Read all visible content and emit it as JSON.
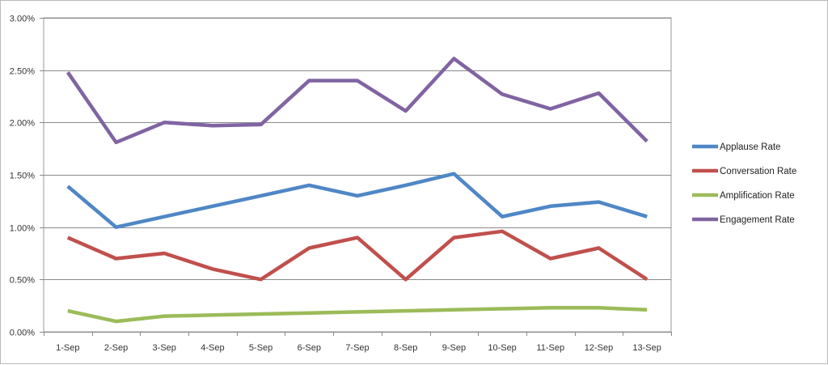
{
  "chart_data": {
    "type": "line",
    "categories": [
      "1-Sep",
      "2-Sep",
      "3-Sep",
      "4-Sep",
      "5-Sep",
      "6-Sep",
      "7-Sep",
      "8-Sep",
      "9-Sep",
      "10-Sep",
      "11-Sep",
      "12-Sep",
      "13-Sep"
    ],
    "y_tick_labels": [
      "0.00%",
      "0.50%",
      "1.00%",
      "1.50%",
      "2.00%",
      "2.50%",
      "3.00%"
    ],
    "y_ticks": [
      0,
      0.5,
      1.0,
      1.5,
      2.0,
      2.5,
      3.0
    ],
    "ylim": [
      0,
      3.0
    ],
    "y_unit": "percent",
    "grid": true,
    "legend_position": "right",
    "title": "",
    "xlabel": "",
    "ylabel": "",
    "series": [
      {
        "name": "Applause Rate",
        "color": "#4f87c6",
        "values": [
          1.39,
          1.0,
          1.1,
          1.2,
          1.3,
          1.4,
          1.3,
          1.4,
          1.51,
          1.1,
          1.2,
          1.24,
          1.1
        ]
      },
      {
        "name": "Conversation Rate",
        "color": "#c0504d",
        "values": [
          0.9,
          0.7,
          0.75,
          0.6,
          0.5,
          0.8,
          0.9,
          0.5,
          0.9,
          0.96,
          0.7,
          0.8,
          0.5
        ]
      },
      {
        "name": "Amplification Rate",
        "color": "#9bbb59",
        "values": [
          0.2,
          0.1,
          0.15,
          0.16,
          0.17,
          0.18,
          0.19,
          0.2,
          0.21,
          0.22,
          0.23,
          0.23,
          0.21
        ]
      },
      {
        "name": "Engagement Rate",
        "color": "#8064a2",
        "values": [
          2.48,
          1.81,
          2.0,
          1.97,
          1.98,
          2.4,
          2.4,
          2.11,
          2.61,
          2.27,
          2.13,
          2.28,
          1.82
        ]
      }
    ]
  }
}
